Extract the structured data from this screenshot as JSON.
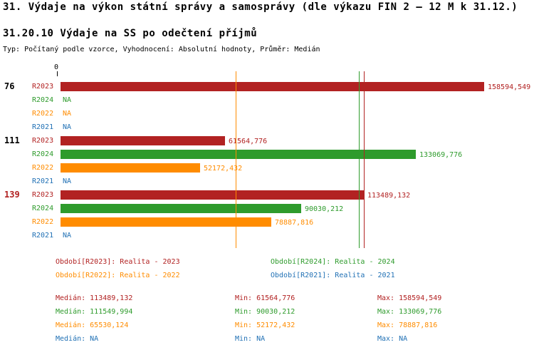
{
  "title": "31. Výdaje na výkon státní správy a samosprávy (dle výkazu FIN 2 – 12 M k 31.12.)",
  "subtitle": "31.20.10 Výdaje na SS po odečtení příjmů",
  "meta": "Typ: Počítaný podle vzorce, Vyhodnocení: Absolutní hodnoty, Průměr: Medián",
  "colors": {
    "R2023": "#b22222",
    "R2024": "#2e9b2c",
    "R2022": "#ff8c00",
    "R2021": "#2171b5",
    "axis": "#000000",
    "highlight_group_label": "#b22222",
    "group_label": "#000000"
  },
  "chart_data": {
    "type": "bar",
    "orientation": "horizontal",
    "origin_label": "0",
    "xlim": [
      0,
      170000
    ],
    "grid": false,
    "groups": [
      {
        "label": "76",
        "highlight": false,
        "rows": [
          {
            "series": "R2023",
            "value": 158594.549,
            "value_label": "158594,549"
          },
          {
            "series": "R2024",
            "value": null,
            "value_label": "NA"
          },
          {
            "series": "R2022",
            "value": null,
            "value_label": "NA"
          },
          {
            "series": "R2021",
            "value": null,
            "value_label": "NA"
          }
        ]
      },
      {
        "label": "111",
        "highlight": false,
        "rows": [
          {
            "series": "R2023",
            "value": 61564.776,
            "value_label": "61564,776"
          },
          {
            "series": "R2024",
            "value": 133069.776,
            "value_label": "133069,776"
          },
          {
            "series": "R2022",
            "value": 52172.432,
            "value_label": "52172,432"
          },
          {
            "series": "R2021",
            "value": null,
            "value_label": "NA"
          }
        ]
      },
      {
        "label": "139",
        "highlight": true,
        "rows": [
          {
            "series": "R2023",
            "value": 113489.132,
            "value_label": "113489,132"
          },
          {
            "series": "R2024",
            "value": 90030.212,
            "value_label": "90030,212"
          },
          {
            "series": "R2022",
            "value": 78887.816,
            "value_label": "78887,816"
          },
          {
            "series": "R2021",
            "value": null,
            "value_label": "NA"
          }
        ]
      }
    ],
    "median_lines": [
      {
        "series": "R2022",
        "value": 65530.124
      },
      {
        "series": "R2024",
        "value": 111549.994
      },
      {
        "series": "R2023",
        "value": 113489.132
      }
    ]
  },
  "legend": [
    {
      "series": "R2023",
      "text": "Období[R2023]: Realita - 2023"
    },
    {
      "series": "R2024",
      "text": "Období[R2024]: Realita - 2024"
    },
    {
      "series": "R2022",
      "text": "Období[R2022]: Realita - 2022"
    },
    {
      "series": "R2021",
      "text": "Období[R2021]: Realita - 2021"
    }
  ],
  "stats": {
    "median_label": "Medián",
    "min_label": "Min",
    "max_label": "Max",
    "rows": [
      {
        "series": "R2023",
        "median": "113489,132",
        "min": "61564,776",
        "max": "158594,549"
      },
      {
        "series": "R2024",
        "median": "111549,994",
        "min": "90030,212",
        "max": "133069,776"
      },
      {
        "series": "R2022",
        "median": "65530,124",
        "min": "52172,432",
        "max": "78887,816"
      },
      {
        "series": "R2021",
        "median": "NA",
        "min": "NA",
        "max": "NA"
      }
    ]
  }
}
